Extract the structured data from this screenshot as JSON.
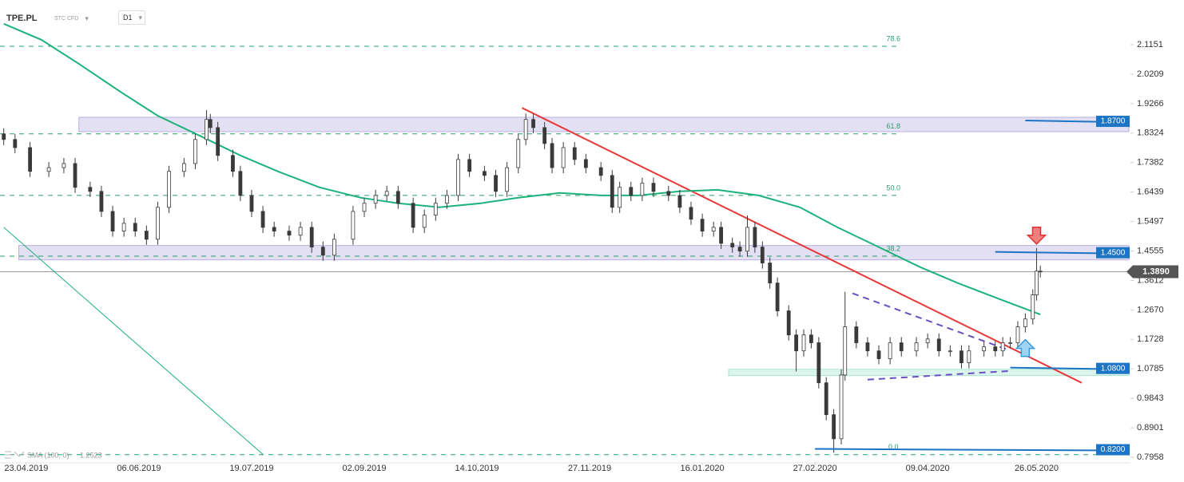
{
  "header": {
    "symbol": "TPE.PL",
    "instrument": "STC CFD",
    "timeframe": "D1"
  },
  "chart_data": {
    "type": "candlestick",
    "x": [
      0,
      3,
      7,
      12,
      16,
      19,
      23,
      26,
      29,
      32,
      35,
      38,
      41,
      44,
      48,
      51,
      54,
      55,
      57,
      61,
      63,
      66,
      69,
      72,
      76,
      79,
      82,
      85,
      88,
      93,
      96,
      99,
      102,
      105,
      109,
      112,
      115,
      118,
      121,
      124,
      128,
      131,
      134,
      137,
      139,
      141,
      144,
      146,
      149,
      152,
      155,
      159,
      162,
      164,
      167,
      170,
      173,
      177,
      180,
      183,
      186,
      189,
      191,
      194,
      196,
      198,
      200,
      202,
      204,
      206,
      209,
      211,
      213,
      215,
      217,
      219,
      221,
      223,
      224,
      227,
      230,
      233,
      236,
      239,
      243,
      246,
      249,
      252,
      255,
      257,
      261,
      264,
      266,
      268,
      270,
      272,
      274,
      275,
      276
    ],
    "open": [
      1.83,
      1.812,
      1.786,
      1.71,
      1.722,
      1.735,
      1.659,
      1.646,
      1.582,
      1.519,
      1.544,
      1.519,
      1.493,
      1.595,
      1.71,
      1.735,
      1.812,
      1.876,
      1.85,
      1.761,
      1.71,
      1.633,
      1.582,
      1.531,
      1.519,
      1.506,
      1.531,
      1.468,
      1.442,
      1.493,
      1.582,
      1.608,
      1.633,
      1.646,
      1.608,
      1.531,
      1.57,
      1.608,
      1.633,
      1.748,
      1.71,
      1.697,
      1.646,
      1.722,
      1.812,
      1.876,
      1.85,
      1.799,
      1.722,
      1.786,
      1.748,
      1.722,
      1.697,
      1.595,
      1.659,
      1.633,
      1.672,
      1.646,
      1.633,
      1.595,
      1.557,
      1.519,
      1.531,
      1.48,
      1.468,
      1.455,
      1.531,
      1.468,
      1.417,
      1.353,
      1.264,
      1.187,
      1.136,
      1.187,
      1.162,
      1.034,
      0.932,
      0.855,
      1.059,
      1.213,
      1.162,
      1.136,
      1.111,
      1.162,
      1.136,
      1.162,
      1.174,
      1.136,
      1.136,
      1.098,
      1.136,
      1.149,
      1.136,
      1.162,
      1.162,
      1.213,
      1.238,
      1.315,
      1.391
    ],
    "high": [
      1.848,
      1.83,
      1.804,
      1.74,
      1.753,
      1.753,
      1.677,
      1.664,
      1.6,
      1.562,
      1.562,
      1.537,
      1.613,
      1.728,
      1.753,
      1.83,
      1.906,
      1.894,
      1.868,
      1.779,
      1.728,
      1.651,
      1.6,
      1.549,
      1.537,
      1.549,
      1.549,
      1.486,
      1.511,
      1.6,
      1.626,
      1.651,
      1.664,
      1.664,
      1.626,
      1.588,
      1.626,
      1.651,
      1.766,
      1.766,
      1.728,
      1.715,
      1.74,
      1.83,
      1.895,
      1.894,
      1.868,
      1.817,
      1.804,
      1.804,
      1.766,
      1.74,
      1.715,
      1.677,
      1.677,
      1.69,
      1.69,
      1.664,
      1.651,
      1.613,
      1.575,
      1.549,
      1.549,
      1.498,
      1.486,
      1.569,
      1.549,
      1.486,
      1.435,
      1.371,
      1.282,
      1.205,
      1.205,
      1.205,
      1.18,
      1.052,
      0.95,
      1.077,
      1.325,
      1.231,
      1.18,
      1.154,
      1.18,
      1.18,
      1.18,
      1.192,
      1.192,
      1.154,
      1.154,
      1.154,
      1.167,
      1.167,
      1.18,
      1.18,
      1.231,
      1.256,
      1.333,
      1.465,
      1.409
    ],
    "low": [
      1.794,
      1.768,
      1.692,
      1.692,
      1.704,
      1.641,
      1.628,
      1.564,
      1.501,
      1.501,
      1.501,
      1.475,
      1.475,
      1.577,
      1.692,
      1.717,
      1.794,
      1.832,
      1.743,
      1.692,
      1.615,
      1.564,
      1.513,
      1.501,
      1.488,
      1.488,
      1.45,
      1.424,
      1.424,
      1.475,
      1.564,
      1.59,
      1.615,
      1.59,
      1.513,
      1.513,
      1.552,
      1.59,
      1.615,
      1.692,
      1.679,
      1.628,
      1.628,
      1.704,
      1.794,
      1.832,
      1.781,
      1.704,
      1.704,
      1.73,
      1.704,
      1.679,
      1.577,
      1.577,
      1.615,
      1.615,
      1.628,
      1.615,
      1.577,
      1.539,
      1.501,
      1.501,
      1.462,
      1.45,
      1.437,
      1.437,
      1.45,
      1.399,
      1.335,
      1.246,
      1.169,
      1.07,
      1.118,
      1.144,
      1.016,
      0.914,
      0.81,
      0.837,
      1.041,
      1.144,
      1.118,
      1.093,
      1.093,
      1.118,
      1.118,
      1.144,
      1.118,
      1.118,
      1.08,
      1.08,
      1.118,
      1.118,
      1.118,
      1.144,
      1.144,
      1.195,
      1.22,
      1.297,
      1.371
    ],
    "close": [
      1.812,
      1.786,
      1.71,
      1.722,
      1.735,
      1.659,
      1.646,
      1.582,
      1.519,
      1.544,
      1.519,
      1.493,
      1.595,
      1.71,
      1.735,
      1.812,
      1.876,
      1.85,
      1.761,
      1.71,
      1.633,
      1.582,
      1.531,
      1.519,
      1.506,
      1.531,
      1.468,
      1.442,
      1.493,
      1.582,
      1.608,
      1.633,
      1.646,
      1.608,
      1.531,
      1.57,
      1.608,
      1.633,
      1.748,
      1.71,
      1.697,
      1.646,
      1.722,
      1.812,
      1.876,
      1.85,
      1.799,
      1.722,
      1.786,
      1.748,
      1.722,
      1.697,
      1.595,
      1.659,
      1.633,
      1.672,
      1.646,
      1.633,
      1.595,
      1.557,
      1.519,
      1.531,
      1.48,
      1.468,
      1.455,
      1.531,
      1.468,
      1.417,
      1.353,
      1.264,
      1.187,
      1.136,
      1.187,
      1.162,
      1.034,
      0.932,
      0.855,
      1.059,
      1.213,
      1.162,
      1.136,
      1.111,
      1.162,
      1.136,
      1.162,
      1.174,
      1.136,
      1.136,
      1.098,
      1.136,
      1.149,
      1.136,
      1.162,
      1.162,
      1.213,
      1.238,
      1.315,
      1.391,
      1.389
    ],
    "colors": {
      "up": "#ffffff",
      "down": "#3a3a3a",
      "edge": "#3a3a3a"
    },
    "xlim": [
      -1,
      300
    ],
    "xticks": [
      {
        "value": 6,
        "label": "23.04.2019"
      },
      {
        "value": 36,
        "label": "06.06.2019"
      },
      {
        "value": 66,
        "label": "19.07.2019"
      },
      {
        "value": 96,
        "label": "02.09.2019"
      },
      {
        "value": 126,
        "label": "14.10.2019"
      },
      {
        "value": 156,
        "label": "27.11.2019"
      },
      {
        "value": 186,
        "label": "16.01.2020"
      },
      {
        "value": 216,
        "label": "27.02.2020"
      },
      {
        "value": 246,
        "label": "09.04.2020"
      },
      {
        "value": 275,
        "label": "26.05.2020"
      }
    ],
    "ylim": [
      0.778,
      2.258
    ],
    "yticks": [
      2.1151,
      2.0209,
      1.9266,
      1.8324,
      1.7382,
      1.6439,
      1.5497,
      1.4555,
      1.3612,
      {
        "value": 1.267,
        "label": "1.2670"
      },
      1.1728,
      1.0785,
      0.9843,
      0.8901,
      0.7958
    ],
    "grid": false,
    "last_price_label": "1.3890",
    "indicator": {
      "name": "SMA (100, 0)",
      "value_label": "1.2523",
      "color": "#1db27a",
      "x": [
        0,
        10,
        20,
        31,
        41,
        52,
        63,
        73,
        84,
        95,
        105,
        116,
        127,
        137,
        148,
        159,
        169,
        180,
        190,
        201,
        212,
        222,
        233,
        244,
        254,
        265,
        276
      ],
      "values": [
        2.182,
        2.131,
        2.054,
        1.965,
        1.888,
        1.825,
        1.761,
        1.71,
        1.659,
        1.626,
        1.608,
        1.595,
        1.608,
        1.626,
        1.641,
        1.633,
        1.633,
        1.646,
        1.651,
        1.633,
        1.595,
        1.531,
        1.468,
        1.404,
        1.353,
        1.302,
        1.2523
      ]
    },
    "fib_levels": {
      "color": "#2a9d6e",
      "x_end": 239,
      "levels": [
        {
          "label": "78.6",
          "value": 2.11
        },
        {
          "label": "61.8",
          "value": 1.83
        },
        {
          "label": "50.0",
          "value": 1.633
        },
        {
          "label": "38.2",
          "value": 1.439
        },
        {
          "label": "0.0",
          "value": 0.804
        }
      ]
    },
    "zones": [
      {
        "low": 1.837,
        "high": 1.883,
        "x_start": 20,
        "color": "#b9b1e0"
      },
      {
        "low": 1.427,
        "high": 1.473,
        "x_start": 4,
        "color": "#b9b1e0"
      },
      {
        "low": 1.057,
        "high": 1.077,
        "x_start": 193,
        "color": "#a8e6cf"
      }
    ],
    "levels": [
      {
        "value": 1.87,
        "label": "1.8700",
        "x_start": 272
      },
      {
        "value": 1.45,
        "label": "1.4500",
        "x_start": 264
      },
      {
        "value": 1.08,
        "label": "1.0800",
        "x_start": 268
      },
      {
        "value": 0.82,
        "label": "0.8200",
        "x_start": 216
      }
    ],
    "level_color": "#1c74c4",
    "trendlines": [
      {
        "color": "#e8393a",
        "dash": false,
        "x": [
          138,
          287
        ],
        "y": [
          1.913,
          1.034
        ]
      },
      {
        "color": "#6a4fc2",
        "dash": true,
        "x": [
          226,
          267
        ],
        "y": [
          1.32,
          1.141
        ]
      },
      {
        "color": "#6a4fc2",
        "dash": true,
        "x": [
          230,
          268
        ],
        "y": [
          1.044,
          1.072
        ]
      },
      {
        "color": "#1db27a",
        "dash": false,
        "x": [
          0,
          69
        ],
        "y": [
          1.531,
          0.805
        ]
      }
    ]
  }
}
